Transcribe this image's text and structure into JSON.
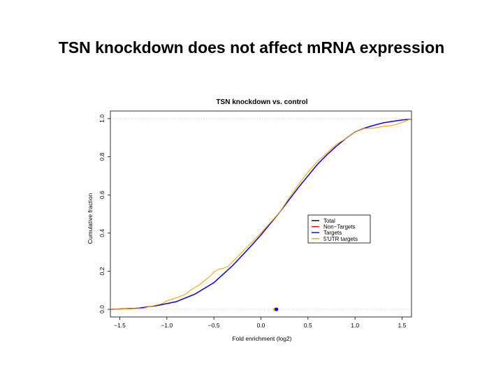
{
  "slide": {
    "title": "TSN knockdown does not affect mRNA expression"
  },
  "chart_data": {
    "type": "line",
    "title": "TSN knockdown vs. control",
    "xlabel": "Fold enrichment (log2)",
    "ylabel": "Cumulative fraction",
    "xlim": [
      -1.6,
      1.6
    ],
    "ylim": [
      -0.04,
      1.04
    ],
    "x_ticks": [
      "−1.5",
      "−1.0",
      "−0.5",
      "0.0",
      "0.5",
      "1.0",
      "1.5"
    ],
    "x_tick_values": [
      -1.5,
      -1.0,
      -0.5,
      0.0,
      0.5,
      1.0,
      1.5
    ],
    "y_ticks": [
      "0.0",
      "0.2",
      "0.4",
      "0.6",
      "0.8",
      "1.0"
    ],
    "y_tick_values": [
      0.0,
      0.2,
      0.4,
      0.6,
      0.8,
      1.0
    ],
    "reference_lines": [
      0.0,
      1.0
    ],
    "legend_position": "center-right",
    "series": [
      {
        "name": "Total",
        "color": "#000000",
        "x": [
          -1.6,
          -1.3,
          -1.1,
          -0.9,
          -0.7,
          -0.5,
          -0.3,
          -0.1,
          0.0,
          0.1,
          0.2,
          0.3,
          0.4,
          0.5,
          0.6,
          0.7,
          0.8,
          0.9,
          1.0,
          1.1,
          1.2,
          1.3,
          1.4,
          1.5,
          1.6
        ],
        "y": [
          0.0,
          0.006,
          0.02,
          0.04,
          0.08,
          0.14,
          0.23,
          0.335,
          0.39,
          0.45,
          0.51,
          0.575,
          0.64,
          0.7,
          0.76,
          0.81,
          0.855,
          0.895,
          0.93,
          0.95,
          0.965,
          0.978,
          0.986,
          0.993,
          0.997
        ]
      },
      {
        "name": "Non−Targets",
        "color": "#ff0000",
        "x": [
          -1.6,
          -1.3,
          -1.1,
          -0.9,
          -0.7,
          -0.5,
          -0.3,
          -0.1,
          0.0,
          0.1,
          0.2,
          0.3,
          0.4,
          0.5,
          0.6,
          0.7,
          0.8,
          0.9,
          1.0,
          1.1,
          1.2,
          1.3,
          1.4,
          1.5,
          1.6
        ],
        "y": [
          0.0,
          0.006,
          0.02,
          0.04,
          0.08,
          0.14,
          0.23,
          0.335,
          0.39,
          0.45,
          0.51,
          0.575,
          0.64,
          0.7,
          0.76,
          0.81,
          0.855,
          0.895,
          0.93,
          0.95,
          0.965,
          0.978,
          0.986,
          0.993,
          0.997
        ]
      },
      {
        "name": "Targets",
        "color": "#0000ff",
        "x": [
          -1.6,
          -1.3,
          -1.1,
          -0.9,
          -0.7,
          -0.5,
          -0.3,
          -0.1,
          0.0,
          0.1,
          0.2,
          0.3,
          0.4,
          0.5,
          0.6,
          0.7,
          0.8,
          0.9,
          1.0,
          1.1,
          1.2,
          1.3,
          1.4,
          1.5,
          1.6
        ],
        "y": [
          0.0,
          0.006,
          0.02,
          0.04,
          0.08,
          0.14,
          0.23,
          0.335,
          0.39,
          0.45,
          0.51,
          0.575,
          0.64,
          0.7,
          0.76,
          0.81,
          0.855,
          0.895,
          0.93,
          0.95,
          0.965,
          0.978,
          0.986,
          0.993,
          0.997
        ]
      },
      {
        "name": "5'UTR targets",
        "color": "#ffa500",
        "x": [
          -1.6,
          -1.25,
          -1.2,
          -1.05,
          -1.0,
          -0.9,
          -0.8,
          -0.75,
          -0.7,
          -0.65,
          -0.6,
          -0.55,
          -0.5,
          -0.45,
          -0.4,
          -0.35,
          -0.3,
          -0.2,
          -0.1,
          0.0,
          0.1,
          0.2,
          0.3,
          0.4,
          0.5,
          0.6,
          0.7,
          0.8,
          0.9,
          1.0,
          1.1,
          1.2,
          1.3,
          1.4,
          1.5,
          1.6
        ],
        "y": [
          0.0,
          0.005,
          0.012,
          0.03,
          0.045,
          0.06,
          0.08,
          0.1,
          0.115,
          0.13,
          0.15,
          0.17,
          0.195,
          0.21,
          0.215,
          0.225,
          0.25,
          0.3,
          0.35,
          0.4,
          0.455,
          0.51,
          0.585,
          0.655,
          0.72,
          0.775,
          0.82,
          0.865,
          0.895,
          0.93,
          0.948,
          0.95,
          0.96,
          0.965,
          0.98,
          1.0
        ]
      }
    ],
    "axis_markers": [
      {
        "x": 0.15,
        "color": "#ffa500"
      },
      {
        "x": 0.165,
        "color": "#0000ff"
      }
    ]
  }
}
